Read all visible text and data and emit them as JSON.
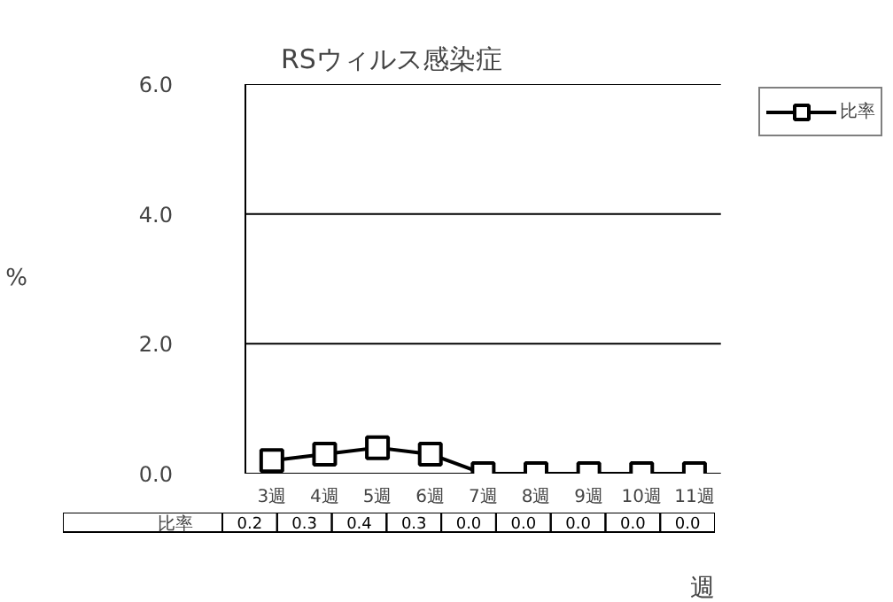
{
  "chart_data": {
    "type": "line",
    "title": "RSウィルス感染症",
    "xlabel": "週",
    "ylabel": "%",
    "categories": [
      "3週",
      "4週",
      "5週",
      "6週",
      "7週",
      "8週",
      "9週",
      "10週",
      "11週"
    ],
    "series": [
      {
        "name": "比率",
        "color": "#000000",
        "values": [
          0.2,
          0.3,
          0.4,
          0.3,
          0.0,
          0.0,
          0.0,
          0.0,
          0.0
        ],
        "value_labels": [
          "0.2",
          "0.3",
          "0.4",
          "0.3",
          "0.0",
          "0.0",
          "0.0",
          "0.0",
          "0.0"
        ]
      }
    ],
    "ylim": [
      0,
      6
    ],
    "yticks": [
      {
        "value": 0,
        "label": "0.0"
      },
      {
        "value": 2,
        "label": "2.0"
      },
      {
        "value": 4,
        "label": "4.0"
      },
      {
        "value": 6,
        "label": "6.0"
      }
    ],
    "grid": "y",
    "legend": "top right",
    "marker": "square",
    "line_style": "solid"
  }
}
